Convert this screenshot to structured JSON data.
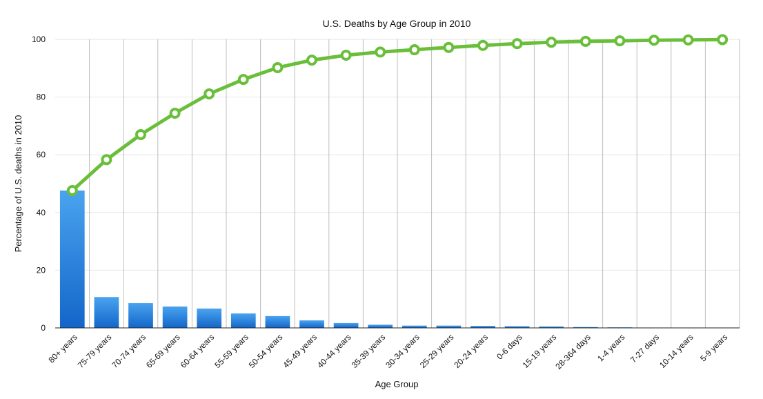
{
  "chart_data": {
    "type": "bar",
    "title": "U.S. Deaths by Age Group in 2010",
    "xlabel": "Age Group",
    "ylabel": "Percentage of U.S. deaths in 2010",
    "ylim": [
      0,
      100
    ],
    "yticks": [
      "0",
      "20",
      "40",
      "60",
      "80",
      "100"
    ],
    "grid": true,
    "categories": [
      "80+ years",
      "75-79 years",
      "70-74 years",
      "65-69 years",
      "60-64 years",
      "55-59 years",
      "50-54 years",
      "45-49 years",
      "40-44 years",
      "35-39 years",
      "30-34 years",
      "25-29 years",
      "20-24 years",
      "0-6 days",
      "15-19 years",
      "28-364 days",
      "1-4 years",
      "7-27 days",
      "10-14 years",
      "5-9 years"
    ],
    "series": [
      {
        "type": "bar",
        "values": [
          47.6,
          10.7,
          8.6,
          7.4,
          6.7,
          5.0,
          4.1,
          2.6,
          1.7,
          1.1,
          0.8,
          0.8,
          0.7,
          0.6,
          0.5,
          0.3,
          0.2,
          0.1,
          0.1,
          0.1
        ],
        "color": "#2f86e0"
      },
      {
        "type": "line",
        "values": [
          47.6,
          58.3,
          67.0,
          74.4,
          81.1,
          86.1,
          90.2,
          92.8,
          94.5,
          95.6,
          96.4,
          97.2,
          97.9,
          98.5,
          99.0,
          99.3,
          99.5,
          99.7,
          99.8,
          99.9
        ],
        "color": "#6abf3a"
      }
    ]
  }
}
